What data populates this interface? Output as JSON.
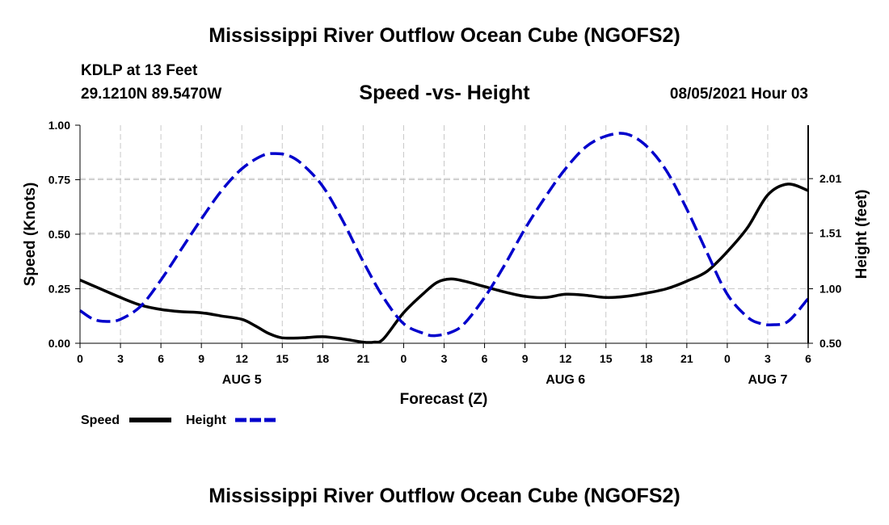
{
  "header": {
    "title": "Mississippi River Outflow Ocean Cube (NGOFS2)",
    "station": "KDLP at 13 Feet",
    "coords": "29.1210N  89.5470W",
    "subtitle": "Speed -vs- Height",
    "timestamp": "08/05/2021 Hour 03"
  },
  "footer": {
    "title": "Mississippi River Outflow Ocean Cube (NGOFS2)"
  },
  "chart_data": {
    "type": "line",
    "title": "Speed -vs- Height",
    "xlabel": "Forecast (Z)",
    "ylabel": "Speed (Knots)",
    "y2label": "Height (feet)",
    "grid": true,
    "x_unit": "hours from AUG 5 00Z",
    "xlim": [
      0,
      54
    ],
    "ylim": [
      0,
      1.0
    ],
    "y2lim": [
      0.5,
      2.5
    ],
    "x_ticks": [
      0,
      3,
      6,
      9,
      12,
      15,
      18,
      21,
      24,
      27,
      30,
      33,
      36,
      39,
      42,
      45,
      48,
      51,
      54
    ],
    "x_tick_labels": [
      "0",
      "3",
      "6",
      "9",
      "12",
      "15",
      "18",
      "21",
      "0",
      "3",
      "6",
      "9",
      "12",
      "15",
      "18",
      "21",
      "0",
      "3",
      "6"
    ],
    "day_labels": [
      {
        "x": 12,
        "label": "AUG 5"
      },
      {
        "x": 36,
        "label": "AUG 6"
      },
      {
        "x": 51,
        "label": "AUG 7"
      }
    ],
    "y_ticks": [
      0,
      0.25,
      0.5,
      0.75,
      1.0
    ],
    "y_tick_labels": [
      "0.00",
      "0.25",
      "0.50",
      "0.75",
      "1.00"
    ],
    "y2_ticks": [
      0.5,
      1.0,
      1.51,
      2.01
    ],
    "y2_tick_labels": [
      "0.50",
      "1.00",
      "1.51",
      "2.01"
    ],
    "legend": [
      {
        "label": "Speed",
        "color": "#000000",
        "style": "solid"
      },
      {
        "label": "Height",
        "color": "#0000cc",
        "style": "dashed"
      }
    ],
    "series": [
      {
        "name": "Speed",
        "axis": "left",
        "color": "#000000",
        "style": "solid",
        "x": [
          0,
          1.5,
          3,
          4.5,
          6,
          7.5,
          9,
          10.5,
          12,
          13,
          14,
          15,
          16.5,
          18,
          19.5,
          21,
          21.8,
          22.5,
          24,
          25.5,
          26.5,
          27.5,
          28.5,
          30,
          31.5,
          33,
          34.5,
          36,
          37.5,
          39,
          40.5,
          42,
          43.5,
          45,
          46.5,
          48,
          49.5,
          51,
          52.5,
          54
        ],
        "y": [
          0.29,
          0.25,
          0.21,
          0.175,
          0.155,
          0.145,
          0.14,
          0.125,
          0.11,
          0.08,
          0.045,
          0.025,
          0.025,
          0.03,
          0.02,
          0.005,
          0.005,
          0.02,
          0.14,
          0.23,
          0.28,
          0.295,
          0.285,
          0.26,
          0.235,
          0.215,
          0.21,
          0.225,
          0.22,
          0.21,
          0.215,
          0.23,
          0.25,
          0.285,
          0.33,
          0.42,
          0.53,
          0.68,
          0.73,
          0.7
        ]
      },
      {
        "name": "Height",
        "axis": "right",
        "color": "#0000cc",
        "style": "dashed",
        "x": [
          0,
          1,
          2,
          3,
          4.5,
          6,
          7.5,
          9,
          10.5,
          12,
          13.5,
          14.5,
          15.5,
          16.5,
          18,
          19.5,
          21,
          22.5,
          24,
          25.5,
          26.3,
          27.5,
          28.5,
          30,
          31.5,
          33,
          34.5,
          36,
          37.5,
          39,
          40.5,
          42,
          43.5,
          45,
          46.5,
          48,
          49.5,
          50.5,
          51.3,
          52.5,
          54
        ],
        "y": [
          0.8,
          0.72,
          0.7,
          0.72,
          0.84,
          1.08,
          1.36,
          1.64,
          1.9,
          2.1,
          2.22,
          2.24,
          2.22,
          2.14,
          1.94,
          1.62,
          1.25,
          0.92,
          0.68,
          0.59,
          0.57,
          0.6,
          0.68,
          0.92,
          1.22,
          1.55,
          1.84,
          2.1,
          2.3,
          2.4,
          2.42,
          2.31,
          2.08,
          1.73,
          1.33,
          0.95,
          0.74,
          0.68,
          0.67,
          0.7,
          0.91
        ]
      }
    ]
  }
}
